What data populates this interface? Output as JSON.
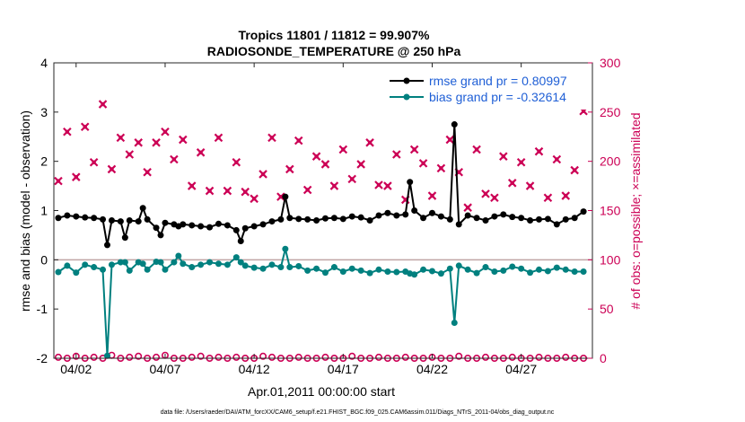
{
  "chart_data": {
    "type": "line",
    "title": "Tropics 11801 / 11812 = 99.907%",
    "subtitle": "RADIOSONDE_TEMPERATURE @ 250 hPa",
    "xlabel": "Apr.01,2011 00:00:00 start",
    "ylabel_left": "rmse and bias (model - observation)",
    "ylabel_right": "# of obs: o=possible; ×=assimilated",
    "footnote": "data file: /Users/raeder/DAI/ATM_forcXX/CAM6_setup/f.e21.FHIST_BGC.f09_025.CAM6assim.011/Diags_NTrS_2011-04/obs_diag_output.nc",
    "xlim": [
      0.75,
      31.0
    ],
    "ylim_left": [
      -2,
      4
    ],
    "ylim_right": [
      0,
      300
    ],
    "x_ticks": [
      2,
      7,
      12,
      17,
      22,
      27
    ],
    "x_tick_labels": [
      "04/02",
      "04/07",
      "04/12",
      "04/17",
      "04/22",
      "04/27"
    ],
    "y_left_ticks": [
      -2,
      -1,
      0,
      1,
      2,
      3,
      4
    ],
    "y_right_ticks": [
      0,
      50,
      100,
      150,
      200,
      250,
      300
    ],
    "grid": false,
    "legend": "top-right",
    "colors": {
      "rmse": "#000000",
      "bias": "#00807f",
      "obs": "#cc0055",
      "zero_line": "#c0a5a5"
    },
    "legend_entries": [
      "rmse grand pr = 0.80997",
      "bias grand pr = -0.32614"
    ],
    "series": [
      {
        "name": "rmse grand pr = 0.80997",
        "axis": "left",
        "x": [
          1.0,
          1.5,
          2.0,
          2.5,
          3.0,
          3.5,
          3.75,
          4.0,
          4.5,
          4.75,
          5.0,
          5.5,
          5.75,
          6.0,
          6.5,
          6.75,
          7.0,
          7.5,
          7.75,
          8.0,
          8.5,
          9.0,
          9.5,
          10.0,
          10.5,
          11.0,
          11.25,
          11.5,
          12.0,
          12.5,
          13.0,
          13.5,
          13.75,
          14.0,
          14.5,
          15.0,
          15.5,
          16.0,
          16.5,
          17.0,
          17.5,
          18.0,
          18.5,
          19.0,
          19.5,
          20.0,
          20.5,
          20.75,
          21.0,
          21.5,
          22.0,
          22.5,
          23.0,
          23.25,
          23.5,
          24.0,
          24.5,
          25.0,
          25.5,
          26.0,
          26.5,
          27.0,
          27.5,
          28.0,
          28.5,
          29.0,
          29.5,
          30.0,
          30.5
        ],
        "values": [
          0.85,
          0.9,
          0.88,
          0.86,
          0.85,
          0.82,
          0.3,
          0.8,
          0.78,
          0.45,
          0.8,
          0.78,
          1.05,
          0.82,
          0.65,
          0.5,
          0.75,
          0.72,
          0.68,
          0.72,
          0.7,
          0.68,
          0.66,
          0.73,
          0.7,
          0.6,
          0.38,
          0.64,
          0.68,
          0.72,
          0.78,
          0.82,
          1.28,
          0.85,
          0.83,
          0.82,
          0.8,
          0.84,
          0.85,
          0.83,
          0.88,
          0.86,
          0.8,
          0.9,
          0.95,
          0.9,
          0.92,
          1.58,
          1.0,
          0.85,
          0.95,
          0.88,
          0.82,
          2.75,
          0.72,
          0.9,
          0.85,
          0.8,
          0.88,
          0.92,
          0.87,
          0.85,
          0.8,
          0.82,
          0.83,
          0.72,
          0.82,
          0.85,
          0.98
        ]
      },
      {
        "name": "bias grand pr = -0.32614",
        "axis": "left",
        "x": [
          1.0,
          1.5,
          2.0,
          2.5,
          3.0,
          3.5,
          3.75,
          4.0,
          4.5,
          4.75,
          5.0,
          5.5,
          5.75,
          6.0,
          6.5,
          6.75,
          7.0,
          7.5,
          7.75,
          8.0,
          8.5,
          9.0,
          9.5,
          10.0,
          10.5,
          11.0,
          11.25,
          11.5,
          12.0,
          12.5,
          13.0,
          13.5,
          13.75,
          14.0,
          14.5,
          15.0,
          15.5,
          16.0,
          16.5,
          17.0,
          17.5,
          18.0,
          18.5,
          19.0,
          19.5,
          20.0,
          20.5,
          20.75,
          21.0,
          21.5,
          22.0,
          22.5,
          23.0,
          23.25,
          23.5,
          24.0,
          24.5,
          25.0,
          25.5,
          26.0,
          26.5,
          27.0,
          27.5,
          28.0,
          28.5,
          29.0,
          29.5,
          30.0,
          30.5
        ],
        "values": [
          -0.25,
          -0.12,
          -0.26,
          -0.1,
          -0.15,
          -0.2,
          -1.95,
          -0.1,
          -0.05,
          -0.05,
          -0.22,
          -0.05,
          -0.08,
          -0.2,
          -0.04,
          -0.05,
          -0.2,
          -0.05,
          0.08,
          -0.08,
          -0.15,
          -0.1,
          -0.05,
          -0.08,
          -0.1,
          0.05,
          -0.05,
          -0.12,
          -0.16,
          -0.18,
          -0.1,
          -0.15,
          0.22,
          -0.15,
          -0.13,
          -0.22,
          -0.18,
          -0.26,
          -0.15,
          -0.24,
          -0.18,
          -0.22,
          -0.27,
          -0.2,
          -0.24,
          -0.25,
          -0.24,
          -0.28,
          -0.3,
          -0.2,
          -0.23,
          -0.28,
          -0.18,
          -1.28,
          -0.12,
          -0.2,
          -0.27,
          -0.15,
          -0.24,
          -0.22,
          -0.14,
          -0.18,
          -0.26,
          -0.2,
          -0.23,
          -0.16,
          -0.2,
          -0.24,
          -0.24
        ]
      },
      {
        "name": "",
        "axis": "right",
        "marker": "x",
        "x": [
          1.0,
          1.5,
          2.0,
          2.5,
          3.0,
          3.5,
          4.0,
          4.5,
          5.0,
          5.5,
          6.0,
          6.5,
          7.0,
          7.5,
          8.0,
          8.5,
          9.0,
          9.5,
          10.0,
          10.5,
          11.0,
          11.5,
          12.0,
          12.5,
          13.0,
          13.5,
          14.0,
          14.5,
          15.0,
          15.5,
          16.0,
          16.5,
          17.0,
          17.5,
          18.0,
          18.5,
          19.0,
          19.5,
          20.0,
          20.5,
          21.0,
          21.5,
          22.0,
          22.5,
          23.0,
          23.5,
          24.0,
          24.5,
          25.0,
          25.5,
          26.0,
          26.5,
          27.0,
          27.5,
          28.0,
          28.5,
          29.0,
          29.5,
          30.0,
          30.5
        ],
        "values": [
          180,
          230,
          184,
          235,
          199,
          258,
          192,
          224,
          207,
          219,
          189,
          219,
          230,
          202,
          222,
          175,
          209,
          170,
          224,
          170,
          199,
          169,
          162,
          187,
          224,
          164,
          192,
          221,
          171,
          205,
          197,
          175,
          212,
          182,
          197,
          219,
          176,
          175,
          207,
          161,
          212,
          198,
          165,
          193,
          222,
          189,
          153,
          212,
          167,
          163,
          205,
          178,
          199,
          175,
          210,
          163,
          202,
          165,
          191,
          251
        ]
      },
      {
        "name": "",
        "axis": "right",
        "marker": "o",
        "x": [
          1.0,
          1.5,
          2.0,
          2.5,
          3.0,
          3.5,
          4.0,
          4.5,
          5.0,
          5.5,
          6.0,
          6.5,
          7.0,
          7.5,
          8.0,
          8.5,
          9.0,
          9.5,
          10.0,
          10.5,
          11.0,
          11.5,
          12.0,
          12.5,
          13.0,
          13.5,
          14.0,
          14.5,
          15.0,
          15.5,
          16.0,
          16.5,
          17.0,
          17.5,
          18.0,
          18.5,
          19.0,
          19.5,
          20.0,
          20.5,
          21.0,
          21.5,
          22.0,
          22.5,
          23.0,
          23.5,
          24.0,
          24.5,
          25.0,
          25.5,
          26.0,
          26.5,
          27.0,
          27.5,
          28.0,
          28.5,
          29.0,
          29.5,
          30.0,
          30.5
        ],
        "values": [
          1,
          0,
          2,
          0,
          1,
          0,
          3,
          0,
          1,
          2,
          0,
          1,
          3,
          0,
          0,
          1,
          2,
          0,
          1,
          0,
          1,
          0,
          0,
          2,
          1,
          0,
          0,
          1,
          0,
          0,
          1,
          0,
          0,
          2,
          0,
          0,
          1,
          0,
          0,
          1,
          0,
          0,
          1,
          0,
          0,
          2,
          0,
          0,
          1,
          0,
          0,
          1,
          0,
          0,
          1,
          0,
          0,
          1,
          0,
          0
        ]
      }
    ]
  }
}
